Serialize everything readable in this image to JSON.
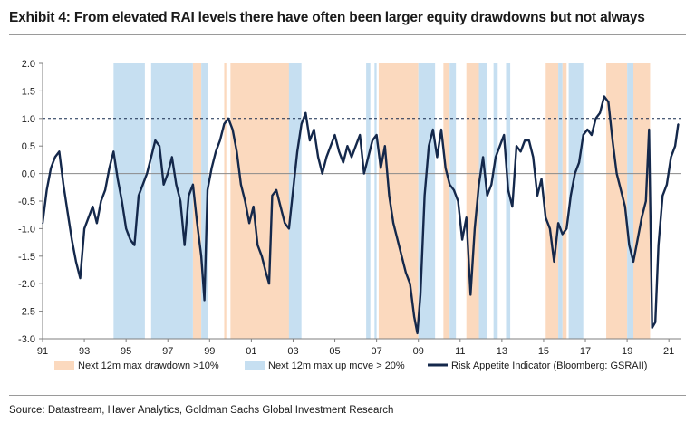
{
  "header": {
    "title": "Exhibit 4: From elevated RAI levels there have often been larger equity drawdowns but not always"
  },
  "footer": {
    "source": "Source: Datastream, Haver Analytics, Goldman Sachs Global Investment Research"
  },
  "colors": {
    "drawdown": "#fbd9be",
    "upmove": "#c6dff1",
    "line": "#14284b",
    "reference": "#14284b"
  },
  "chart_data": {
    "type": "line",
    "title": "From elevated RAI levels there have often been larger equity drawdowns but not always",
    "xlabel": "",
    "ylabel": "",
    "xlim": [
      1991.0,
      2021.6
    ],
    "ylim": [
      -3.0,
      2.0
    ],
    "x_ticks": [
      1991,
      1993,
      1995,
      1997,
      1999,
      2001,
      2003,
      2005,
      2007,
      2009,
      2011,
      2013,
      2015,
      2017,
      2019,
      2021
    ],
    "x_tick_labels": [
      "91",
      "93",
      "95",
      "97",
      "99",
      "01",
      "03",
      "05",
      "07",
      "09",
      "11",
      "13",
      "15",
      "17",
      "19",
      "21"
    ],
    "y_ticks": [
      2.0,
      1.5,
      1.0,
      0.5,
      0.0,
      -0.5,
      -1.0,
      -1.5,
      -2.0,
      -2.5,
      -3.0
    ],
    "y_tick_labels": [
      "2.0",
      "1.5",
      "1.0",
      "0.5",
      "0.0",
      "-0.5",
      "-1.0",
      "-1.5",
      "-2.0",
      "-2.5",
      "-3.0"
    ],
    "reference_line": {
      "y": 1.0,
      "style": "dashed"
    },
    "zero_line": 0.0,
    "legend": {
      "position": "bottom",
      "entries": [
        {
          "label": "Next 12m max drawdown >10%",
          "kind": "area",
          "color": "#fbd9be"
        },
        {
          "label": "Next 12m max up move > 20%",
          "kind": "area",
          "color": "#c6dff1"
        },
        {
          "label": "Risk Appetite Indicator (Bloomberg: GSRAII)",
          "kind": "line",
          "color": "#14284b"
        }
      ]
    },
    "shaded_regions": {
      "drawdown_gt_10pct": [
        [
          1998.2,
          1998.6
        ],
        [
          1999.7,
          1999.8
        ],
        [
          2000.0,
          2002.9
        ],
        [
          2007.1,
          2009.0
        ],
        [
          2010.2,
          2010.5
        ],
        [
          2011.3,
          2011.9
        ],
        [
          2015.1,
          2015.7
        ],
        [
          2015.9,
          2016.1
        ],
        [
          2018.0,
          2019.0
        ],
        [
          2019.3,
          2020.1
        ]
      ],
      "up_move_gt_20pct": [
        [
          1994.4,
          1995.9
        ],
        [
          1996.2,
          1998.2
        ],
        [
          1998.6,
          1998.9
        ],
        [
          2002.8,
          2003.4
        ],
        [
          2006.5,
          2006.7
        ],
        [
          2006.9,
          2007.0
        ],
        [
          2009.0,
          2009.8
        ],
        [
          2010.5,
          2010.8
        ],
        [
          2011.9,
          2012.3
        ],
        [
          2012.6,
          2012.8
        ],
        [
          2013.2,
          2013.4
        ],
        [
          2015.7,
          2015.9
        ],
        [
          2016.2,
          2016.9
        ],
        [
          2019.0,
          2019.3
        ]
      ]
    },
    "series": [
      {
        "name": "Risk Appetite Indicator (Bloomberg: GSRAII)",
        "x": [
          1991.0,
          1991.2,
          1991.4,
          1991.6,
          1991.8,
          1992.0,
          1992.2,
          1992.4,
          1992.6,
          1992.8,
          1993.0,
          1993.2,
          1993.4,
          1993.6,
          1993.8,
          1994.0,
          1994.2,
          1994.4,
          1994.6,
          1994.8,
          1995.0,
          1995.2,
          1995.4,
          1995.6,
          1995.8,
          1996.0,
          1996.2,
          1996.4,
          1996.6,
          1996.8,
          1997.0,
          1997.2,
          1997.4,
          1997.6,
          1997.8,
          1998.0,
          1998.2,
          1998.4,
          1998.6,
          1998.75,
          1998.9,
          1999.1,
          1999.3,
          1999.5,
          1999.7,
          1999.9,
          2000.1,
          2000.3,
          2000.5,
          2000.7,
          2000.9,
          2001.1,
          2001.3,
          2001.5,
          2001.7,
          2001.85,
          2002.0,
          2002.2,
          2002.4,
          2002.6,
          2002.8,
          2003.0,
          2003.2,
          2003.4,
          2003.6,
          2003.8,
          2004.0,
          2004.2,
          2004.4,
          2004.6,
          2004.8,
          2005.0,
          2005.2,
          2005.4,
          2005.6,
          2005.8,
          2006.0,
          2006.2,
          2006.4,
          2006.6,
          2006.8,
          2007.0,
          2007.2,
          2007.4,
          2007.6,
          2007.8,
          2008.0,
          2008.2,
          2008.4,
          2008.6,
          2008.8,
          2008.95,
          2009.1,
          2009.3,
          2009.5,
          2009.7,
          2009.9,
          2010.1,
          2010.3,
          2010.5,
          2010.7,
          2010.9,
          2011.1,
          2011.3,
          2011.5,
          2011.7,
          2011.9,
          2012.1,
          2012.3,
          2012.5,
          2012.7,
          2012.9,
          2013.1,
          2013.3,
          2013.5,
          2013.7,
          2013.9,
          2014.1,
          2014.3,
          2014.5,
          2014.7,
          2014.9,
          2015.1,
          2015.3,
          2015.5,
          2015.7,
          2015.9,
          2016.1,
          2016.3,
          2016.5,
          2016.7,
          2016.9,
          2017.1,
          2017.3,
          2017.5,
          2017.7,
          2017.9,
          2018.1,
          2018.3,
          2018.5,
          2018.7,
          2018.9,
          2019.1,
          2019.3,
          2019.5,
          2019.7,
          2019.9,
          2020.05,
          2020.2,
          2020.35,
          2020.5,
          2020.7,
          2020.9,
          2021.1,
          2021.3,
          2021.45
        ],
        "values": [
          -0.9,
          -0.3,
          0.1,
          0.3,
          0.4,
          -0.2,
          -0.7,
          -1.2,
          -1.6,
          -1.9,
          -1.0,
          -0.8,
          -0.6,
          -0.9,
          -0.5,
          -0.3,
          0.1,
          0.4,
          -0.1,
          -0.5,
          -1.0,
          -1.2,
          -1.3,
          -0.4,
          -0.2,
          0.0,
          0.3,
          0.6,
          0.5,
          -0.2,
          0.0,
          0.3,
          -0.2,
          -0.5,
          -1.3,
          -0.4,
          -0.2,
          -0.9,
          -1.5,
          -2.3,
          -0.3,
          0.1,
          0.4,
          0.6,
          0.9,
          1.0,
          0.8,
          0.4,
          -0.2,
          -0.5,
          -0.9,
          -0.6,
          -1.3,
          -1.5,
          -1.8,
          -2.0,
          -0.4,
          -0.3,
          -0.6,
          -0.9,
          -1.0,
          -0.3,
          0.4,
          0.9,
          1.1,
          0.6,
          0.8,
          0.3,
          0.0,
          0.3,
          0.5,
          0.7,
          0.4,
          0.2,
          0.5,
          0.3,
          0.5,
          0.7,
          0.0,
          0.3,
          0.6,
          0.7,
          0.1,
          0.5,
          -0.4,
          -0.9,
          -1.2,
          -1.5,
          -1.8,
          -2.0,
          -2.6,
          -2.9,
          -2.2,
          -0.4,
          0.5,
          0.8,
          0.3,
          0.8,
          0.1,
          -0.2,
          -0.3,
          -0.5,
          -1.2,
          -0.8,
          -2.2,
          -1.0,
          -0.2,
          0.3,
          -0.4,
          -0.2,
          0.3,
          0.5,
          0.7,
          -0.3,
          -0.6,
          0.5,
          0.4,
          0.6,
          0.6,
          0.3,
          -0.4,
          -0.1,
          -0.8,
          -1.0,
          -1.6,
          -0.9,
          -1.1,
          -1.0,
          -0.4,
          0.0,
          0.2,
          0.7,
          0.8,
          0.7,
          1.0,
          1.1,
          1.4,
          1.3,
          0.6,
          0.0,
          -0.3,
          -0.6,
          -1.3,
          -1.6,
          -1.2,
          -0.8,
          -0.5,
          0.8,
          -2.8,
          -2.7,
          -1.3,
          -0.4,
          -0.2,
          0.3,
          0.5,
          0.9
        ]
      }
    ]
  }
}
